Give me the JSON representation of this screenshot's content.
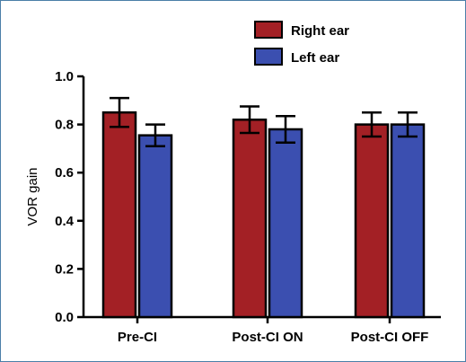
{
  "colors": {
    "right_ear": "#a32025",
    "left_ear": "#3b4fb0",
    "axis": "#000000",
    "frame_border": "#4b7fa8"
  },
  "chart_data": {
    "type": "bar",
    "title": "",
    "xlabel": "",
    "ylabel": "VOR gain",
    "ylim": [
      0.0,
      1.0
    ],
    "yticks": [
      "0.0",
      "0.2",
      "0.4",
      "0.6",
      "0.8",
      "1.0"
    ],
    "ytick_values": [
      0.0,
      0.2,
      0.4,
      0.6,
      0.8,
      1.0
    ],
    "categories": [
      "Pre-CI",
      "Post-CI ON",
      "Post-CI OFF"
    ],
    "legend_position": "top-right",
    "grid": false,
    "series": [
      {
        "name": "Right ear",
        "color": "#a32025",
        "values": [
          0.85,
          0.82,
          0.8
        ],
        "errors": [
          0.06,
          0.055,
          0.05
        ]
      },
      {
        "name": "Left ear",
        "color": "#3b4fb0",
        "values": [
          0.755,
          0.78,
          0.8
        ],
        "errors": [
          0.045,
          0.055,
          0.05
        ]
      }
    ]
  }
}
